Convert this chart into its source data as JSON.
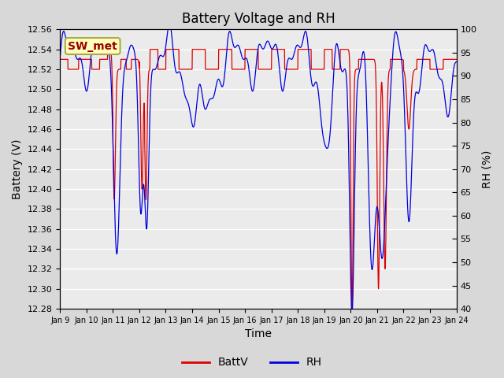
{
  "title": "Battery Voltage and RH",
  "xlabel": "Time",
  "ylabel_left": "Battery (V)",
  "ylabel_right": "RH (%)",
  "annotation_text": "SW_met",
  "ylim_left": [
    12.28,
    12.56
  ],
  "ylim_right": [
    40,
    100
  ],
  "yticks_left": [
    12.28,
    12.3,
    12.32,
    12.34,
    12.36,
    12.38,
    12.4,
    12.42,
    12.44,
    12.46,
    12.48,
    12.5,
    12.52,
    12.54,
    12.56
  ],
  "yticks_right": [
    40,
    45,
    50,
    55,
    60,
    65,
    70,
    75,
    80,
    85,
    90,
    95,
    100
  ],
  "xtick_labels": [
    "Jan 9",
    "Jan 10",
    "Jan 11",
    "Jan 12",
    "Jan 13",
    "Jan 14",
    "Jan 15",
    "Jan 16",
    "Jan 17",
    "Jan 18",
    "Jan 19",
    "Jan 20",
    "Jan 21",
    "Jan 22",
    "Jan 23",
    "Jan 24"
  ],
  "legend_labels": [
    "BattV",
    "RH"
  ],
  "line_color_battv": "#dd0000",
  "line_color_rh": "#0000dd",
  "bg_color": "#d8d8d8",
  "plot_bg_color": "#ebebeb",
  "grid_color": "#ffffff",
  "title_fontsize": 12,
  "axis_fontsize": 10,
  "tick_fontsize": 8,
  "annotation_fontsize": 10
}
